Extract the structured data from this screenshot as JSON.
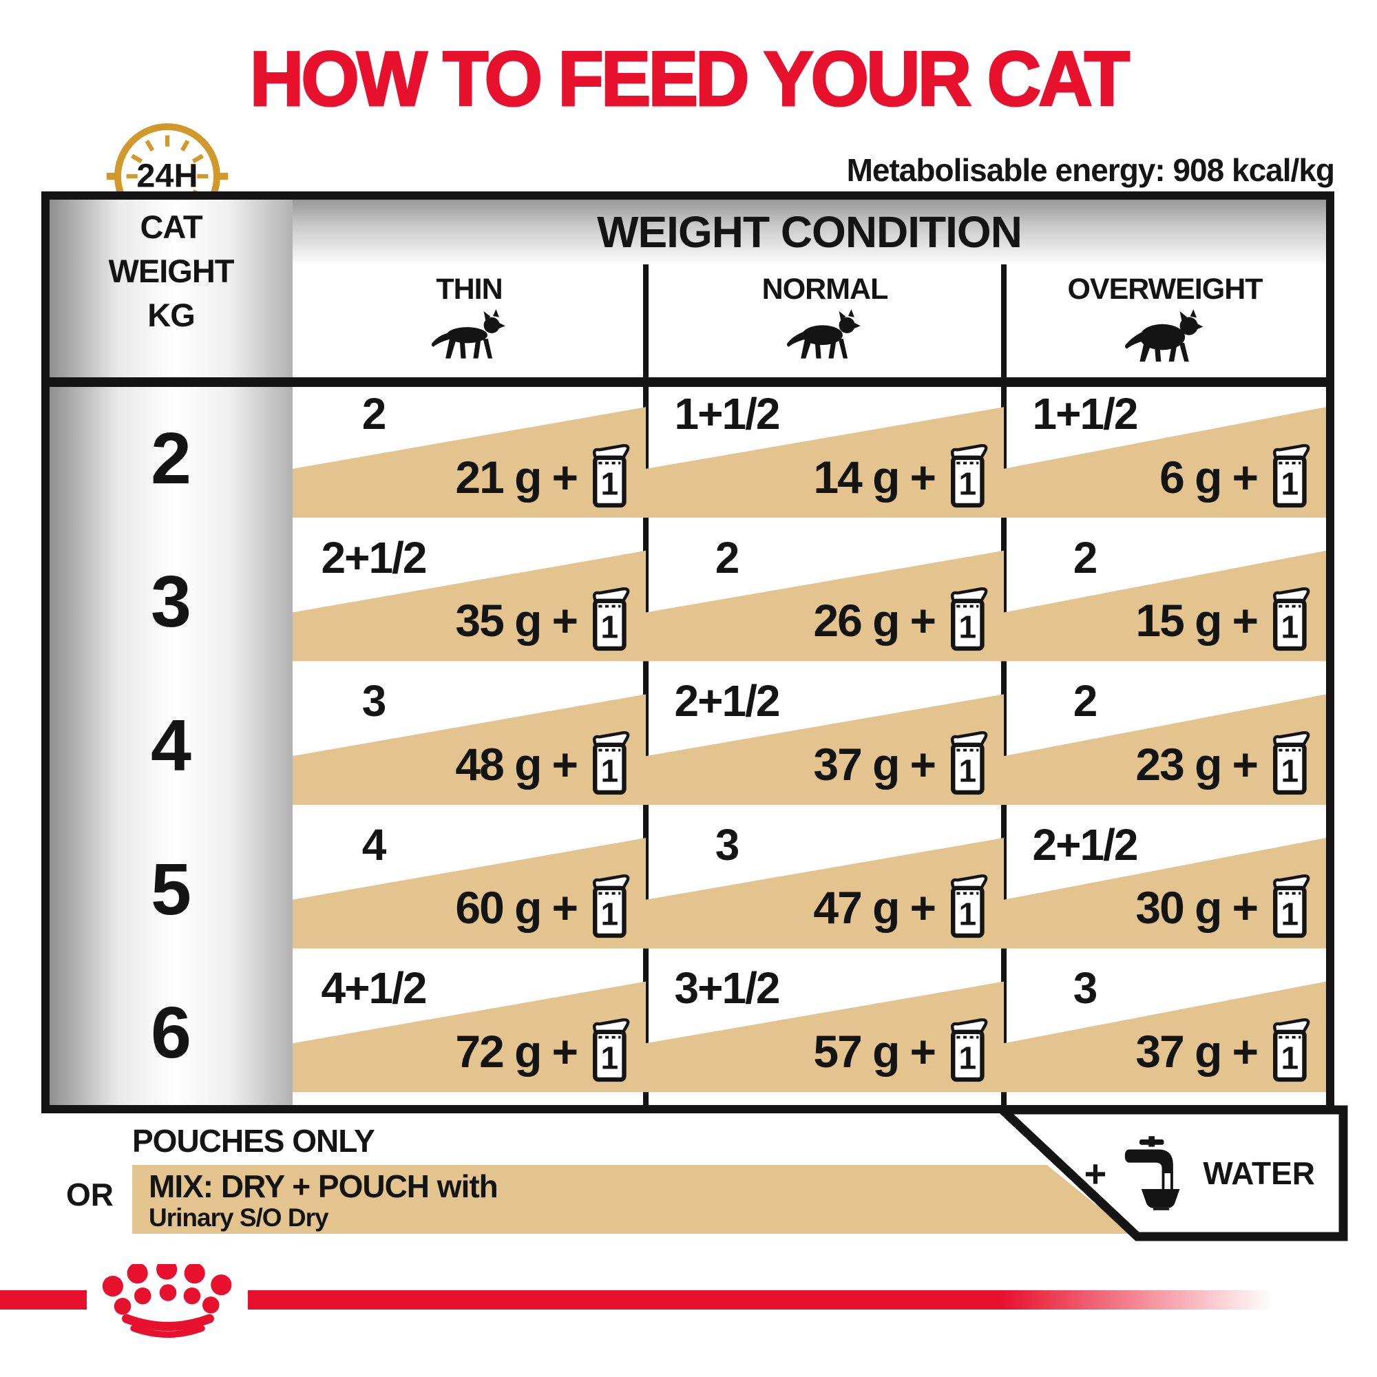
{
  "title": "HOW TO FEED YOUR CAT",
  "clock": {
    "label": "24H"
  },
  "energy_note": "Metabolisable energy: 908 kcal/kg",
  "table": {
    "corner": [
      "CAT",
      "WEIGHT",
      "KG"
    ],
    "header": "WEIGHT CONDITION",
    "conditions": [
      {
        "label": "THIN"
      },
      {
        "label": "NORMAL"
      },
      {
        "label": "OVERWEIGHT"
      }
    ],
    "cell_plus": "+",
    "pouch_icon_label": "1",
    "rows": [
      {
        "weight": "2",
        "cells": [
          {
            "pouches": "2",
            "grams": "21 g"
          },
          {
            "pouches": "1+1/2",
            "grams": "14 g"
          },
          {
            "pouches": "1+1/2",
            "grams": "6 g"
          }
        ]
      },
      {
        "weight": "3",
        "cells": [
          {
            "pouches": "2+1/2",
            "grams": "35 g"
          },
          {
            "pouches": "2",
            "grams": "26 g"
          },
          {
            "pouches": "2",
            "grams": "15 g"
          }
        ]
      },
      {
        "weight": "4",
        "cells": [
          {
            "pouches": "3",
            "grams": "48 g"
          },
          {
            "pouches": "2+1/2",
            "grams": "37 g"
          },
          {
            "pouches": "2",
            "grams": "23 g"
          }
        ]
      },
      {
        "weight": "5",
        "cells": [
          {
            "pouches": "4",
            "grams": "60 g"
          },
          {
            "pouches": "3",
            "grams": "47 g"
          },
          {
            "pouches": "2+1/2",
            "grams": "30 g"
          }
        ]
      },
      {
        "weight": "6",
        "cells": [
          {
            "pouches": "4+1/2",
            "grams": "72 g"
          },
          {
            "pouches": "3+1/2",
            "grams": "57 g"
          },
          {
            "pouches": "3",
            "grams": "37 g"
          }
        ]
      }
    ]
  },
  "footer": {
    "pouches_only": "POUCHES ONLY",
    "or": "OR",
    "mix_line1": "MIX: DRY + POUCH with",
    "mix_line2": "Urinary S/O Dry",
    "water_plus": "+",
    "water": "WATER"
  },
  "colors": {
    "accent_red": "#e8112d",
    "tan": "#e3c48f",
    "gold": "#d1992b",
    "ink": "#141414"
  }
}
